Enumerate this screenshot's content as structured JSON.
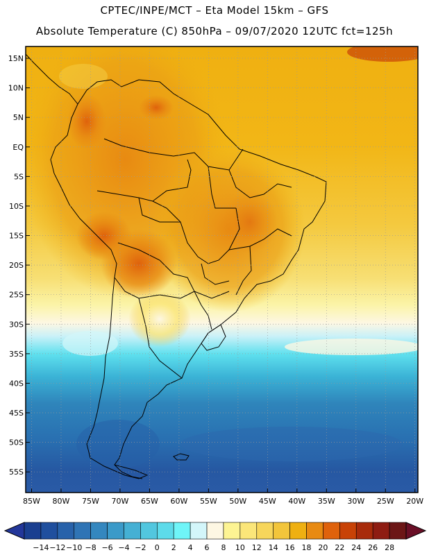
{
  "header": {
    "line1": "CPTEC/INPE/MCT –  Eta Model 15km – GFS",
    "line2": "Absolute Temperature (C) 850hPa – 09/07/2020 12UTC fct=125h"
  },
  "map": {
    "variable": "Absolute Temperature",
    "units": "C",
    "level": "850hPa",
    "model": "Eta Model 15km",
    "driver": "GFS",
    "init": "09/07/2020 12UTC",
    "forecast_hour": "125h",
    "lat_labels": [
      "15N",
      "10N",
      "5N",
      "EQ",
      "5S",
      "10S",
      "15S",
      "20S",
      "25S",
      "30S",
      "35S",
      "40S",
      "45S",
      "50S",
      "55S"
    ],
    "lat_values": [
      15,
      10,
      5,
      0,
      -5,
      -10,
      -15,
      -20,
      -25,
      -30,
      -35,
      -40,
      -45,
      -50,
      -55
    ],
    "lon_labels": [
      "85W",
      "80W",
      "75W",
      "70W",
      "65W",
      "60W",
      "55W",
      "50W",
      "45W",
      "40W",
      "35W",
      "30W",
      "25W",
      "20W"
    ],
    "lon_values": [
      -85,
      -80,
      -75,
      -70,
      -65,
      -60,
      -55,
      -50,
      -45,
      -40,
      -35,
      -30,
      -25,
      -20
    ],
    "extent": {
      "lon_min": -86,
      "lon_max": -19.5,
      "lat_min": -58.5,
      "lat_max": 17
    }
  },
  "colorbar": {
    "labels": [
      "-14",
      "-12",
      "-10",
      "-8",
      "-6",
      "-4",
      "-2",
      "0",
      "2",
      "4",
      "6",
      "8",
      "10",
      "12",
      "14",
      "16",
      "18",
      "20",
      "22",
      "24",
      "26",
      "28"
    ],
    "colors": [
      "#1a3f90",
      "#1f4f9e",
      "#2862aa",
      "#2f74b5",
      "#3487bf",
      "#3b9ac9",
      "#45b0d4",
      "#52c7df",
      "#5ddbea",
      "#6ff5f8",
      "#d3f6fa",
      "#fdf7e3",
      "#fdf493",
      "#fbe679",
      "#f7d65b",
      "#f2c53b",
      "#efb011",
      "#e88a12",
      "#df620c",
      "#c84206",
      "#a82b0b",
      "#8e1c12",
      "#6c1616"
    ],
    "under_color": "#23379a",
    "over_color": "#6a0f26"
  }
}
